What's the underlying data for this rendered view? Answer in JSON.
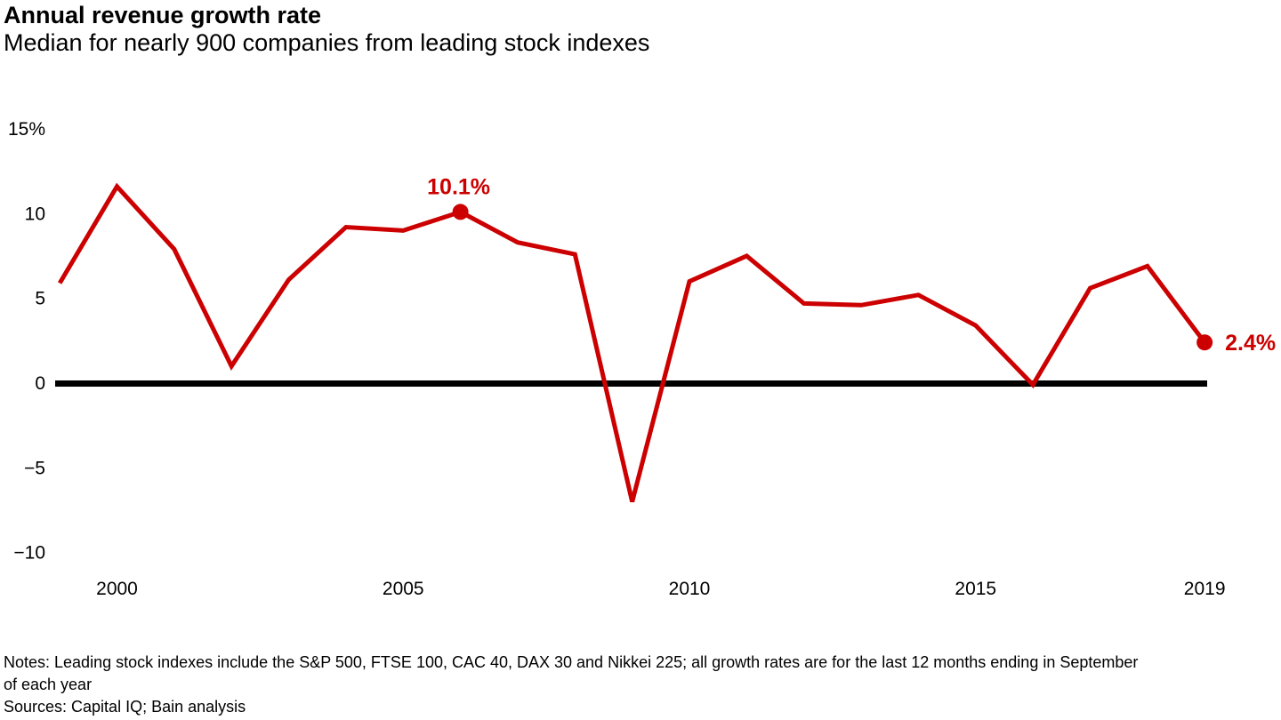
{
  "header": {
    "title": "Annual revenue growth rate",
    "subtitle": "Median for nearly 900 companies from leading stock indexes"
  },
  "chart_data": {
    "type": "line",
    "title": "Annual revenue growth rate",
    "subtitle": "Median for nearly 900 companies from leading stock indexes",
    "x": [
      1999,
      2000,
      2001,
      2002,
      2003,
      2004,
      2005,
      2006,
      2007,
      2008,
      2009,
      2010,
      2011,
      2012,
      2013,
      2014,
      2015,
      2016,
      2017,
      2018,
      2019
    ],
    "series": [
      {
        "name": "Median annual revenue growth rate (%)",
        "values": [
          5.9,
          11.6,
          7.9,
          1.0,
          6.1,
          9.2,
          9.0,
          10.1,
          8.3,
          7.6,
          -7.0,
          6.0,
          7.5,
          4.7,
          4.6,
          5.2,
          3.4,
          -0.1,
          5.6,
          6.9,
          2.4
        ]
      }
    ],
    "ylim": [
      -10,
      15
    ],
    "xlabel": "",
    "ylabel": "",
    "grid": false,
    "legend": "none",
    "line_color": "#cc0000",
    "zero_line_color": "#000000",
    "yticks": [
      {
        "value": 15,
        "label": "15%"
      },
      {
        "value": 10,
        "label": "10"
      },
      {
        "value": 5,
        "label": "5"
      },
      {
        "value": 0,
        "label": "0"
      },
      {
        "value": -5,
        "label": "−5"
      },
      {
        "value": -10,
        "label": "−10"
      }
    ],
    "xticks": [
      {
        "value": 2000,
        "label": "2000"
      },
      {
        "value": 2005,
        "label": "2005"
      },
      {
        "value": 2010,
        "label": "2010"
      },
      {
        "value": 2015,
        "label": "2015"
      },
      {
        "value": 2019,
        "label": "2019"
      }
    ],
    "annotations": [
      {
        "x": 2006,
        "y": 10.1,
        "label": "10.1%",
        "placement": "above"
      },
      {
        "x": 2019,
        "y": 2.4,
        "label": "2.4%",
        "placement": "right"
      }
    ]
  },
  "footer": {
    "notes_lines": [
      "Notes: Leading stock indexes include the S&P 500, FTSE 100, CAC 40, DAX 30 and Nikkei 225; all growth rates are for the last 12 months ending in September",
      "of each year"
    ],
    "sources_line": "Sources: Capital IQ; Bain analysis"
  }
}
